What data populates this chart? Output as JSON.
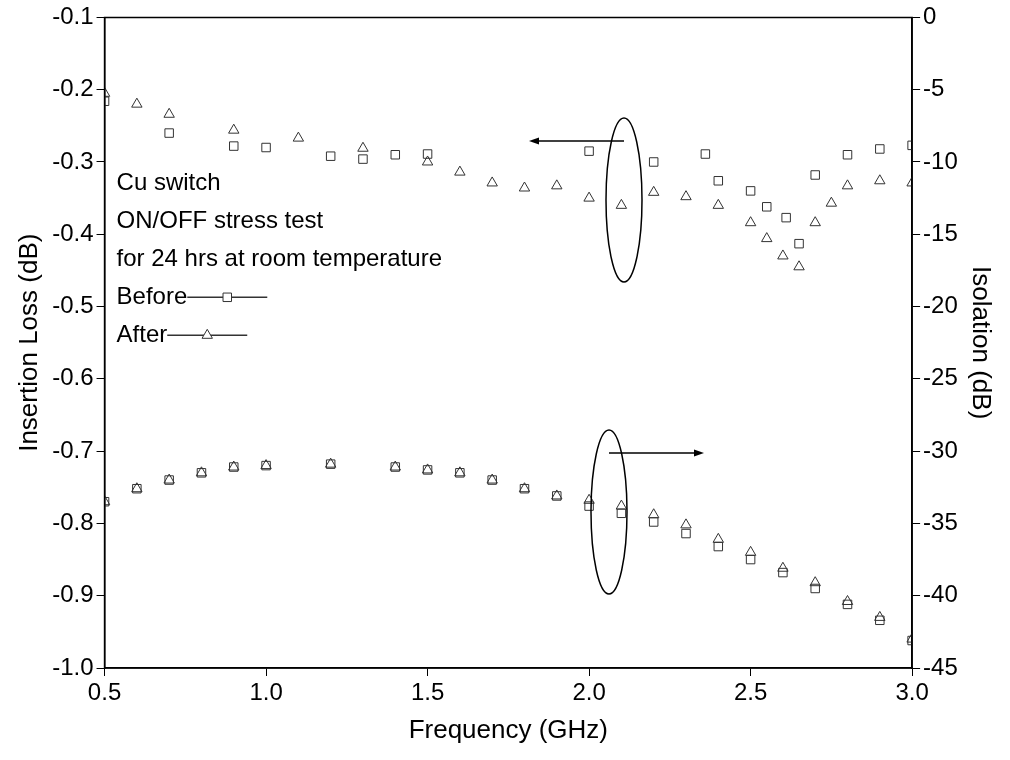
{
  "chart_data": {
    "type": "scatter",
    "xlabel": "Frequency (GHz)",
    "ylabel": "Insertion Loss (dB)",
    "y2label": "Isolation (dB)",
    "annotations": [
      "Cu switch",
      "ON/OFF stress test",
      "for 24 hrs at room temperature"
    ],
    "xlim": [
      0.5,
      3.0
    ],
    "xticks": [
      {
        "value": 0.5,
        "label": "0.5"
      },
      {
        "value": 1,
        "label": "1.0"
      },
      {
        "value": 1.5,
        "label": "1.5"
      },
      {
        "value": 2,
        "label": "2.0"
      },
      {
        "value": 2.5,
        "label": "2.5"
      },
      {
        "value": 3,
        "label": "3.0"
      }
    ],
    "ylim": [
      -1.0,
      -0.1
    ],
    "yticks": [
      {
        "value": -1,
        "label": "-1.0"
      },
      -0.9,
      -0.8,
      -0.7,
      -0.6,
      -0.5,
      -0.4,
      -0.3,
      -0.2,
      -0.1
    ],
    "y2lim": [
      -45,
      0
    ],
    "y2ticks": [
      -45,
      -40,
      -35,
      -30,
      -25,
      -20,
      -15,
      -10,
      -5,
      0
    ],
    "legend": "left",
    "grid": false,
    "series": [
      {
        "name": "Before",
        "color": "#333333",
        "marker": "square",
        "x": [
          0.5,
          0.7,
          0.9,
          1.0,
          1.2,
          1.3,
          1.4,
          1.5,
          2.0,
          2.2,
          2.36,
          2.4,
          2.5,
          2.55,
          2.61,
          2.65,
          2.7,
          2.8,
          2.9,
          3.0
        ],
        "values": [
          -0.216,
          -0.26,
          -0.278,
          -0.28,
          -0.292,
          -0.296,
          -0.29,
          -0.289,
          -0.285,
          -0.3,
          -0.289,
          -0.326,
          -0.34,
          -0.362,
          -0.377,
          -0.413,
          -0.318,
          -0.29,
          -0.282,
          -0.277
        ]
      },
      {
        "name": "After",
        "color": "#333333",
        "marker": "triangle",
        "x": [
          0.5,
          0.6,
          0.7,
          0.9,
          1.1,
          1.3,
          1.5,
          1.6,
          1.7,
          1.8,
          1.9,
          2.0,
          2.1,
          2.2,
          2.3,
          2.4,
          2.5,
          2.55,
          2.6,
          2.65,
          2.7,
          2.75,
          2.8,
          2.9,
          3.0
        ],
        "values": [
          -0.205,
          -0.22,
          -0.234,
          -0.256,
          -0.267,
          -0.281,
          -0.3,
          -0.314,
          -0.329,
          -0.336,
          -0.333,
          -0.35,
          -0.36,
          -0.342,
          -0.348,
          -0.36,
          -0.384,
          -0.406,
          -0.43,
          -0.445,
          -0.384,
          -0.357,
          -0.333,
          -0.326,
          -0.329
        ]
      },
      {
        "color": "#333333",
        "marker": "square",
        "axis": "y2",
        "x": [
          0.5,
          0.6,
          0.7,
          0.8,
          0.9,
          1.0,
          1.2,
          1.4,
          1.5,
          1.6,
          1.7,
          1.8,
          1.9,
          2.0,
          2.1,
          2.2,
          2.3,
          2.4,
          2.5,
          2.6,
          2.7,
          2.8,
          2.9,
          3.0
        ],
        "values": [
          -33.5,
          -32.6,
          -32.0,
          -31.5,
          -31.1,
          -31.0,
          -30.9,
          -31.1,
          -31.3,
          -31.5,
          -32.0,
          -32.6,
          -33.1,
          -33.8,
          -34.3,
          -34.9,
          -35.7,
          -36.6,
          -37.5,
          -38.4,
          -39.5,
          -40.6,
          -41.7,
          -43.1
        ]
      },
      {
        "color": "#333333",
        "marker": "triangle",
        "axis": "y2",
        "x": [
          0.5,
          0.6,
          0.7,
          0.8,
          0.9,
          1.0,
          1.2,
          1.4,
          1.5,
          1.6,
          1.7,
          1.8,
          1.9,
          2.0,
          2.1,
          2.2,
          2.3,
          2.4,
          2.5,
          2.6,
          2.7,
          2.8,
          2.9,
          3.0
        ],
        "values": [
          -33.5,
          -32.6,
          -32.0,
          -31.5,
          -31.1,
          -31.0,
          -30.9,
          -31.1,
          -31.3,
          -31.5,
          -32.0,
          -32.6,
          -33.1,
          -33.4,
          -33.8,
          -34.4,
          -35.1,
          -36.1,
          -37.0,
          -38.1,
          -39.1,
          -40.4,
          -41.5,
          -43.0
        ]
      }
    ]
  }
}
